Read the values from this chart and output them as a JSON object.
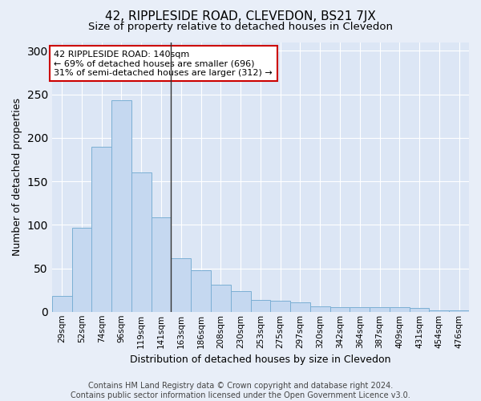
{
  "title": "42, RIPPLESIDE ROAD, CLEVEDON, BS21 7JX",
  "subtitle": "Size of property relative to detached houses in Clevedon",
  "xlabel": "Distribution of detached houses by size in Clevedon",
  "ylabel": "Number of detached properties",
  "footnote1": "Contains HM Land Registry data © Crown copyright and database right 2024.",
  "footnote2": "Contains public sector information licensed under the Open Government Licence v3.0.",
  "bar_labels": [
    "29sqm",
    "52sqm",
    "74sqm",
    "96sqm",
    "119sqm",
    "141sqm",
    "163sqm",
    "186sqm",
    "208sqm",
    "230sqm",
    "253sqm",
    "275sqm",
    "297sqm",
    "320sqm",
    "342sqm",
    "364sqm",
    "387sqm",
    "409sqm",
    "431sqm",
    "454sqm",
    "476sqm"
  ],
  "bar_values": [
    18,
    97,
    190,
    243,
    160,
    109,
    62,
    48,
    31,
    24,
    14,
    13,
    11,
    6,
    5,
    5,
    5,
    5,
    4,
    2,
    2
  ],
  "bar_color": "#c5d8f0",
  "bar_edge_color": "#7bafd4",
  "highlight_index": 5,
  "highlight_line_color": "#333333",
  "annotation_line1": "42 RIPPLESIDE ROAD: 140sqm",
  "annotation_line2": "← 69% of detached houses are smaller (696)",
  "annotation_line3": "31% of semi-detached houses are larger (312) →",
  "annotation_box_color": "#ffffff",
  "annotation_box_edge_color": "#cc0000",
  "ylim": [
    0,
    310
  ],
  "background_color": "#e8eef8",
  "plot_bg_color": "#dce6f5",
  "grid_color": "#ffffff",
  "title_fontsize": 11,
  "subtitle_fontsize": 9.5,
  "axis_label_fontsize": 9,
  "tick_fontsize": 7.5,
  "annotation_fontsize": 8,
  "footnote_fontsize": 7
}
